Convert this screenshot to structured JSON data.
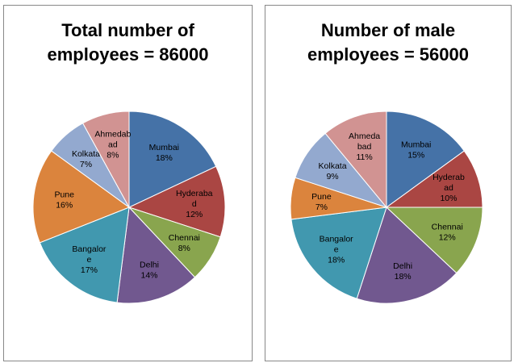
{
  "chart_data": [
    {
      "type": "pie",
      "title_lines": [
        "Total number of",
        "employees = 86000"
      ],
      "slices": [
        {
          "name": "Mumbai",
          "lines": [
            "Mumbai"
          ],
          "value": 18,
          "color": "#4572A7"
        },
        {
          "name": "Hyderabad",
          "lines": [
            "Hyderaba",
            "d"
          ],
          "value": 12,
          "color": "#AA4643"
        },
        {
          "name": "Chennai",
          "lines": [
            "Chennai"
          ],
          "value": 8,
          "color": "#89A54E"
        },
        {
          "name": "Delhi",
          "lines": [
            "Delhi"
          ],
          "value": 14,
          "color": "#71588F"
        },
        {
          "name": "Bangalore",
          "lines": [
            "Bangalor",
            "e"
          ],
          "value": 17,
          "color": "#4198AF"
        },
        {
          "name": "Pune",
          "lines": [
            "Pune"
          ],
          "value": 16,
          "color": "#DB843D"
        },
        {
          "name": "Kolkata",
          "lines": [
            "Kolkata"
          ],
          "value": 7,
          "color": "#93A9CF"
        },
        {
          "name": "Ahmedabad",
          "lines": [
            "Ahmedab",
            "ad"
          ],
          "value": 8,
          "color": "#D19392"
        }
      ]
    },
    {
      "type": "pie",
      "title_lines": [
        "Number of male",
        "employees = 56000"
      ],
      "slices": [
        {
          "name": "Mumbai",
          "lines": [
            "Mumbai"
          ],
          "value": 15,
          "color": "#4572A7"
        },
        {
          "name": "Hyderabad",
          "lines": [
            "Hyderab",
            "ad"
          ],
          "value": 10,
          "color": "#AA4643"
        },
        {
          "name": "Chennai",
          "lines": [
            "Chennai"
          ],
          "value": 12,
          "color": "#89A54E"
        },
        {
          "name": "Delhi",
          "lines": [
            "Delhi"
          ],
          "value": 18,
          "color": "#71588F"
        },
        {
          "name": "Bangalore",
          "lines": [
            "Bangalor",
            "e"
          ],
          "value": 18,
          "color": "#4198AF"
        },
        {
          "name": "Pune",
          "lines": [
            "Pune"
          ],
          "value": 7,
          "color": "#DB843D"
        },
        {
          "name": "Kolkata",
          "lines": [
            "Kolkata"
          ],
          "value": 9,
          "color": "#93A9CF"
        },
        {
          "name": "Ahmedabad",
          "lines": [
            "Ahmeda",
            "bad"
          ],
          "value": 11,
          "color": "#D19392"
        }
      ]
    }
  ]
}
